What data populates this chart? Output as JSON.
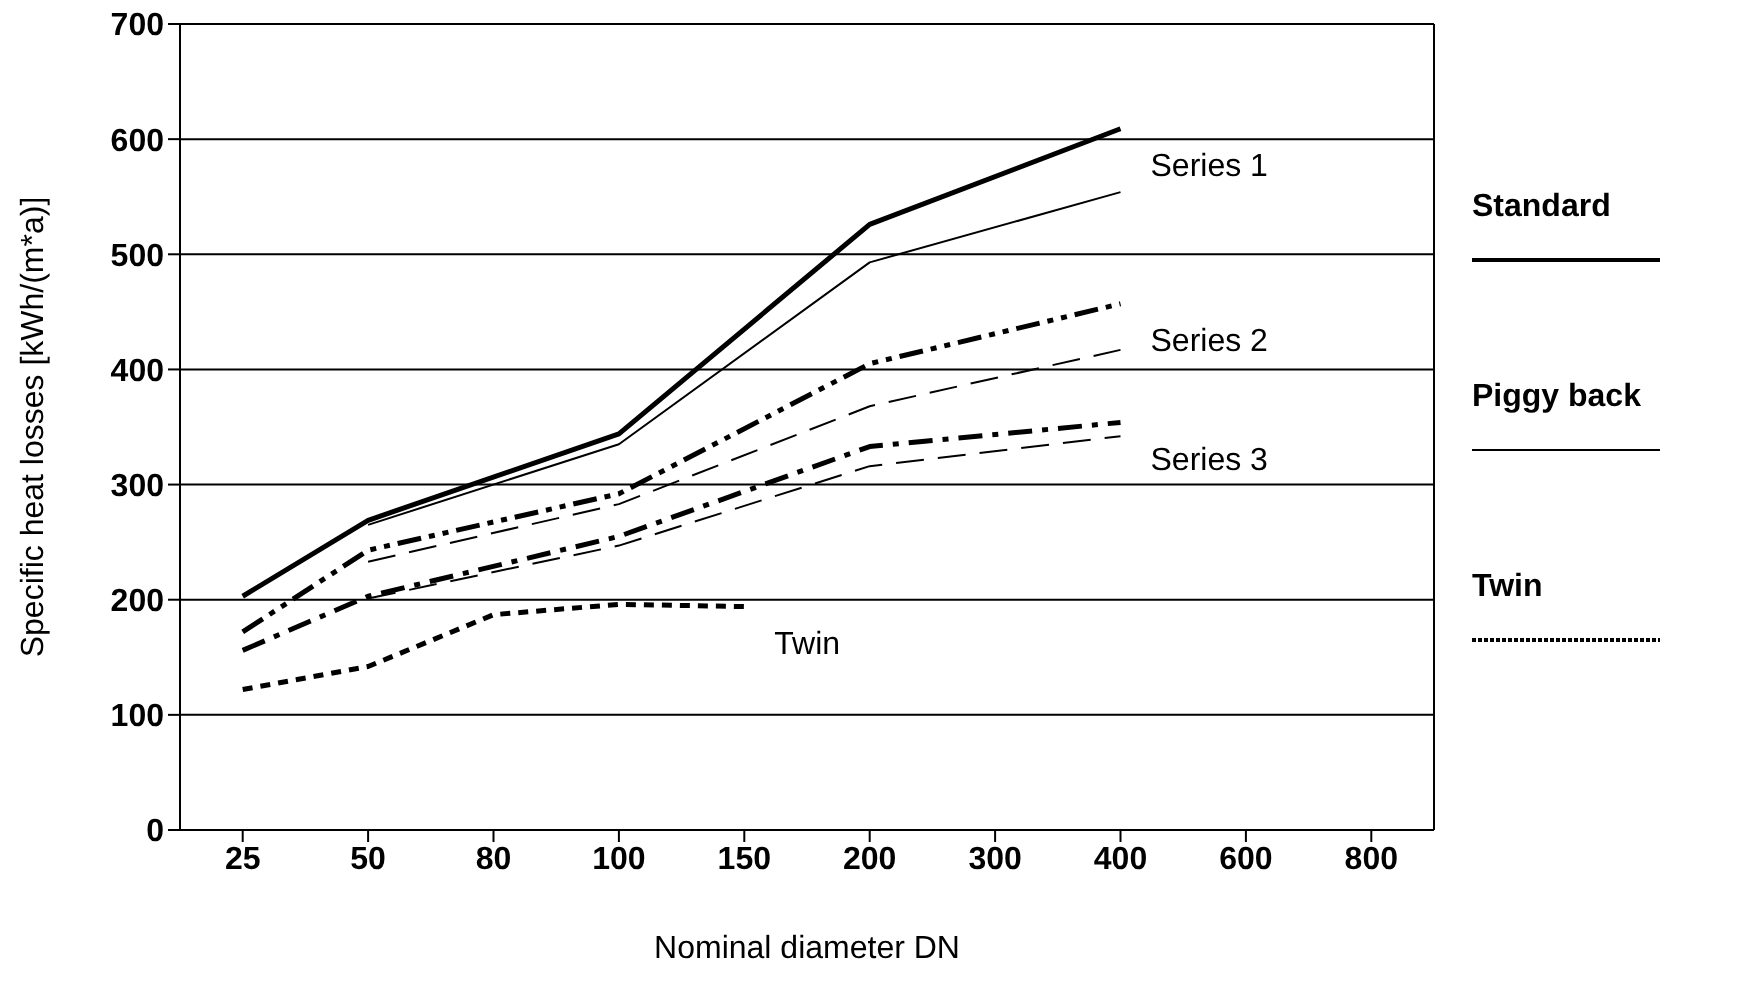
{
  "chart_data": {
    "type": "line",
    "xlabel": "Nominal diameter DN",
    "ylabel": "Specific heat losses [kWh/(m*a)]",
    "categories": [
      "25",
      "50",
      "80",
      "100",
      "150",
      "200",
      "300",
      "400",
      "600",
      "800"
    ],
    "ylim": [
      0,
      700
    ],
    "yticks": [
      0,
      100,
      200,
      300,
      400,
      500,
      600,
      700
    ],
    "grid": "y",
    "marker": "none",
    "series": [
      {
        "name": "Series 1",
        "color": "#000000",
        "line_style": "solid",
        "values": [
          203,
          269,
          null,
          344,
          null,
          526,
          null,
          609,
          null,
          null
        ]
      },
      {
        "color": "#000000",
        "line_style": "solid",
        "values": [
          null,
          265,
          null,
          335,
          null,
          493,
          null,
          554,
          null,
          null
        ]
      },
      {
        "name": "Series 2",
        "color": "#000000",
        "line_style": "dashdotdot",
        "values": [
          172,
          243,
          null,
          292,
          null,
          405,
          null,
          457,
          null,
          null
        ]
      },
      {
        "color": "#000000",
        "line_style": "dashed",
        "values": [
          null,
          233,
          null,
          283,
          null,
          368,
          null,
          417,
          null,
          null
        ]
      },
      {
        "name": "Series 3",
        "color": "#000000",
        "line_style": "dashdot",
        "values": [
          156,
          203,
          null,
          255,
          null,
          333,
          null,
          354,
          null,
          null
        ]
      },
      {
        "color": "#000000",
        "line_style": "dashed",
        "values": [
          null,
          201,
          null,
          247,
          null,
          316,
          null,
          342,
          null,
          null
        ]
      },
      {
        "name": "Twin",
        "color": "#000000",
        "line_style": "dotted",
        "values": [
          122,
          142,
          187,
          196,
          194,
          null,
          null,
          null,
          null,
          null
        ]
      }
    ],
    "annotations": [
      "Standard",
      "Piggy back",
      "Twin"
    ]
  }
}
